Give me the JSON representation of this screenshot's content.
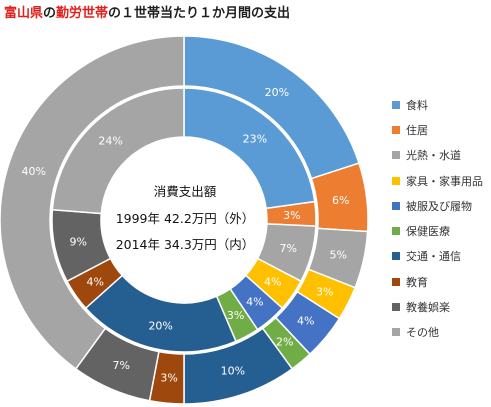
{
  "title": {
    "part1": "富山県",
    "part2": "の",
    "part3": "勤労世帯",
    "part4": "の１世帯当たり１か月間の支出"
  },
  "center": {
    "line1": "消費支出額",
    "line2": "1999年 42.2万円（外）",
    "line3": "2014年 34.3万円（内）"
  },
  "chart_data": {
    "type": "pie",
    "categories": [
      "食料",
      "住居",
      "光熱・水道",
      "家具・家事用品",
      "被服及び履物",
      "保健医療",
      "交通・通信",
      "教育",
      "教養娯楽",
      "その他"
    ],
    "colors": [
      "#5b9bd5",
      "#ed7d31",
      "#a5a5a5",
      "#ffc000",
      "#4472c4",
      "#70ad47",
      "#255e91",
      "#9e480e",
      "#636363",
      "#a5a5a5"
    ],
    "series": [
      {
        "name": "1999年",
        "values": [
          20,
          6,
          5,
          3,
          4,
          2,
          10,
          3,
          7,
          40
        ]
      },
      {
        "name": "2014年",
        "values": [
          23,
          3,
          7,
          4,
          4,
          3,
          20,
          4,
          9,
          24
        ]
      }
    ]
  }
}
